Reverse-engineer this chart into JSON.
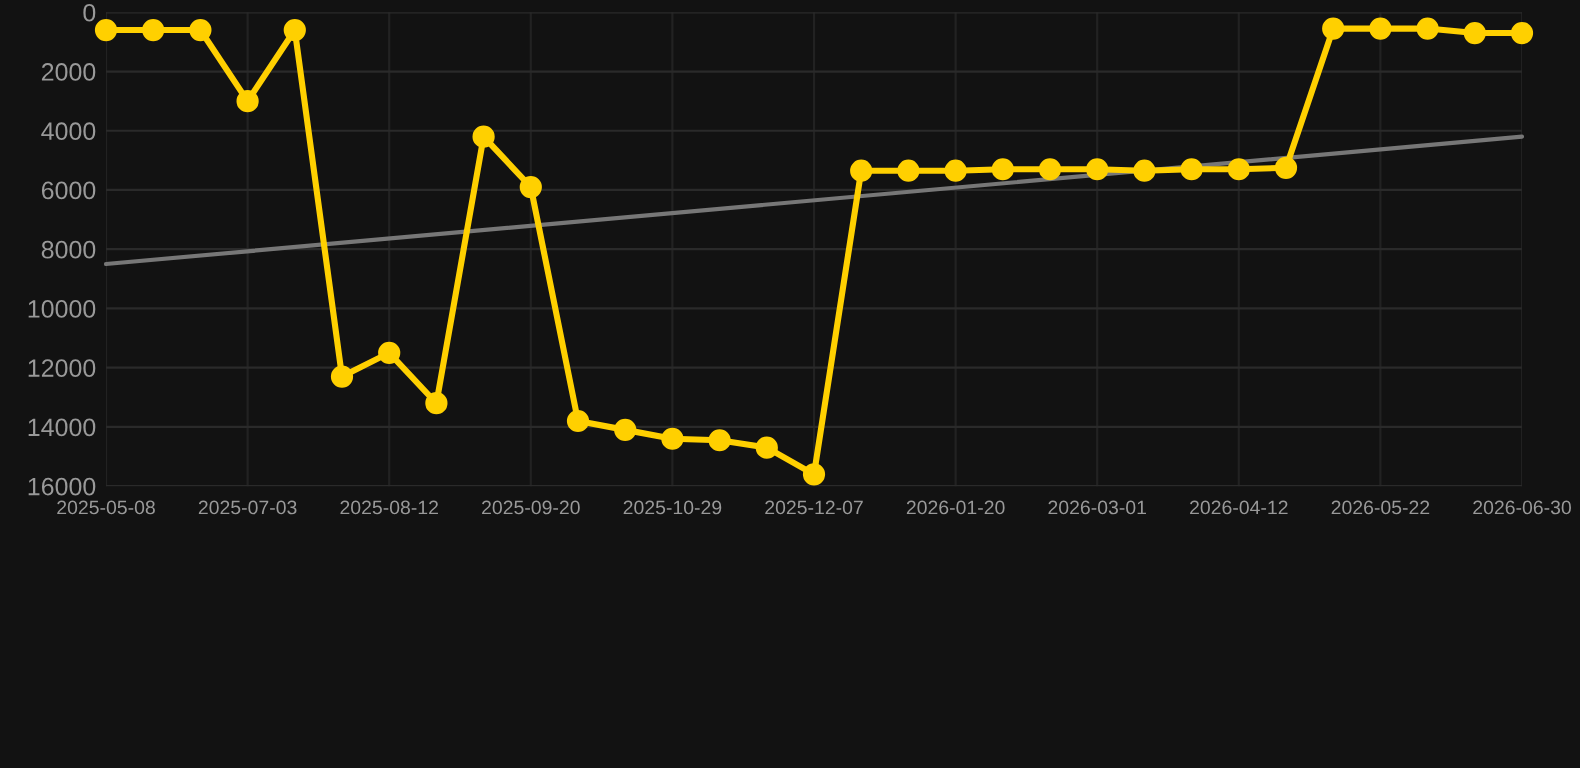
{
  "chart_data": {
    "type": "line",
    "categories": [
      "2025-05-08",
      null,
      null,
      "2025-07-03",
      null,
      null,
      "2025-08-12",
      null,
      null,
      "2025-09-20",
      null,
      null,
      "2025-10-29",
      null,
      null,
      "2025-12-07",
      null,
      null,
      "2026-01-20",
      null,
      null,
      "2026-03-01",
      null,
      null,
      "2026-04-12",
      null,
      null,
      "2026-05-22",
      null,
      null,
      "2026-06-30"
    ],
    "series": [
      {
        "color": "#ffd000",
        "marker": "circle",
        "values": [
          600,
          600,
          600,
          3000,
          600,
          12300,
          11500,
          13200,
          4200,
          5900,
          13800,
          14100,
          14400,
          14450,
          14700,
          15600,
          5350,
          5350,
          5350,
          5300,
          5300,
          5300,
          5350,
          5300,
          5300,
          5250,
          550,
          550,
          550,
          700,
          700
        ]
      },
      {
        "color": "#777777",
        "marker": "none",
        "values": [
          8500,
          null,
          null,
          null,
          null,
          null,
          null,
          null,
          null,
          null,
          null,
          null,
          null,
          null,
          null,
          null,
          null,
          null,
          null,
          null,
          null,
          null,
          null,
          null,
          null,
          null,
          null,
          null,
          null,
          null,
          4200
        ]
      }
    ],
    "ylim": [
      16000,
      0
    ],
    "yticks": [
      0,
      2000,
      4000,
      6000,
      8000,
      10000,
      12000,
      14000,
      16000
    ],
    "grid": true
  }
}
